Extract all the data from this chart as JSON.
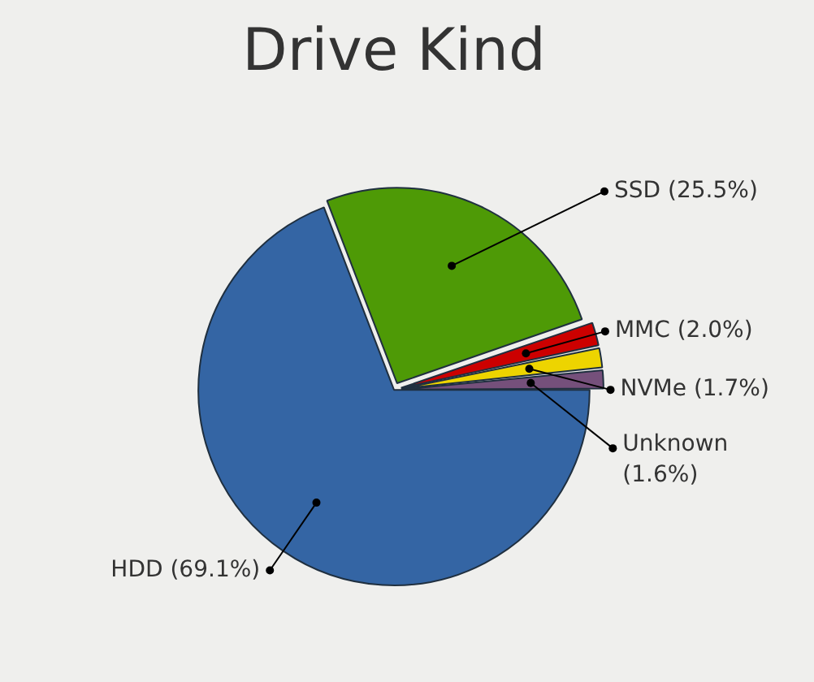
{
  "chart_data": {
    "type": "pie",
    "title": "Drive Kind",
    "categories": [
      "HDD",
      "SSD",
      "MMC",
      "NVMe",
      "Unknown"
    ],
    "values": [
      69.1,
      25.5,
      2.0,
      1.7,
      1.6
    ],
    "colors": [
      "#3465a4",
      "#4e9a06",
      "#cc0000",
      "#edd400",
      "#75507b"
    ],
    "value_labels": [
      "(69.1%)",
      "(25.5%)",
      "(2.0%)",
      "(1.7%)",
      "(1.6%)"
    ],
    "legend": false
  }
}
